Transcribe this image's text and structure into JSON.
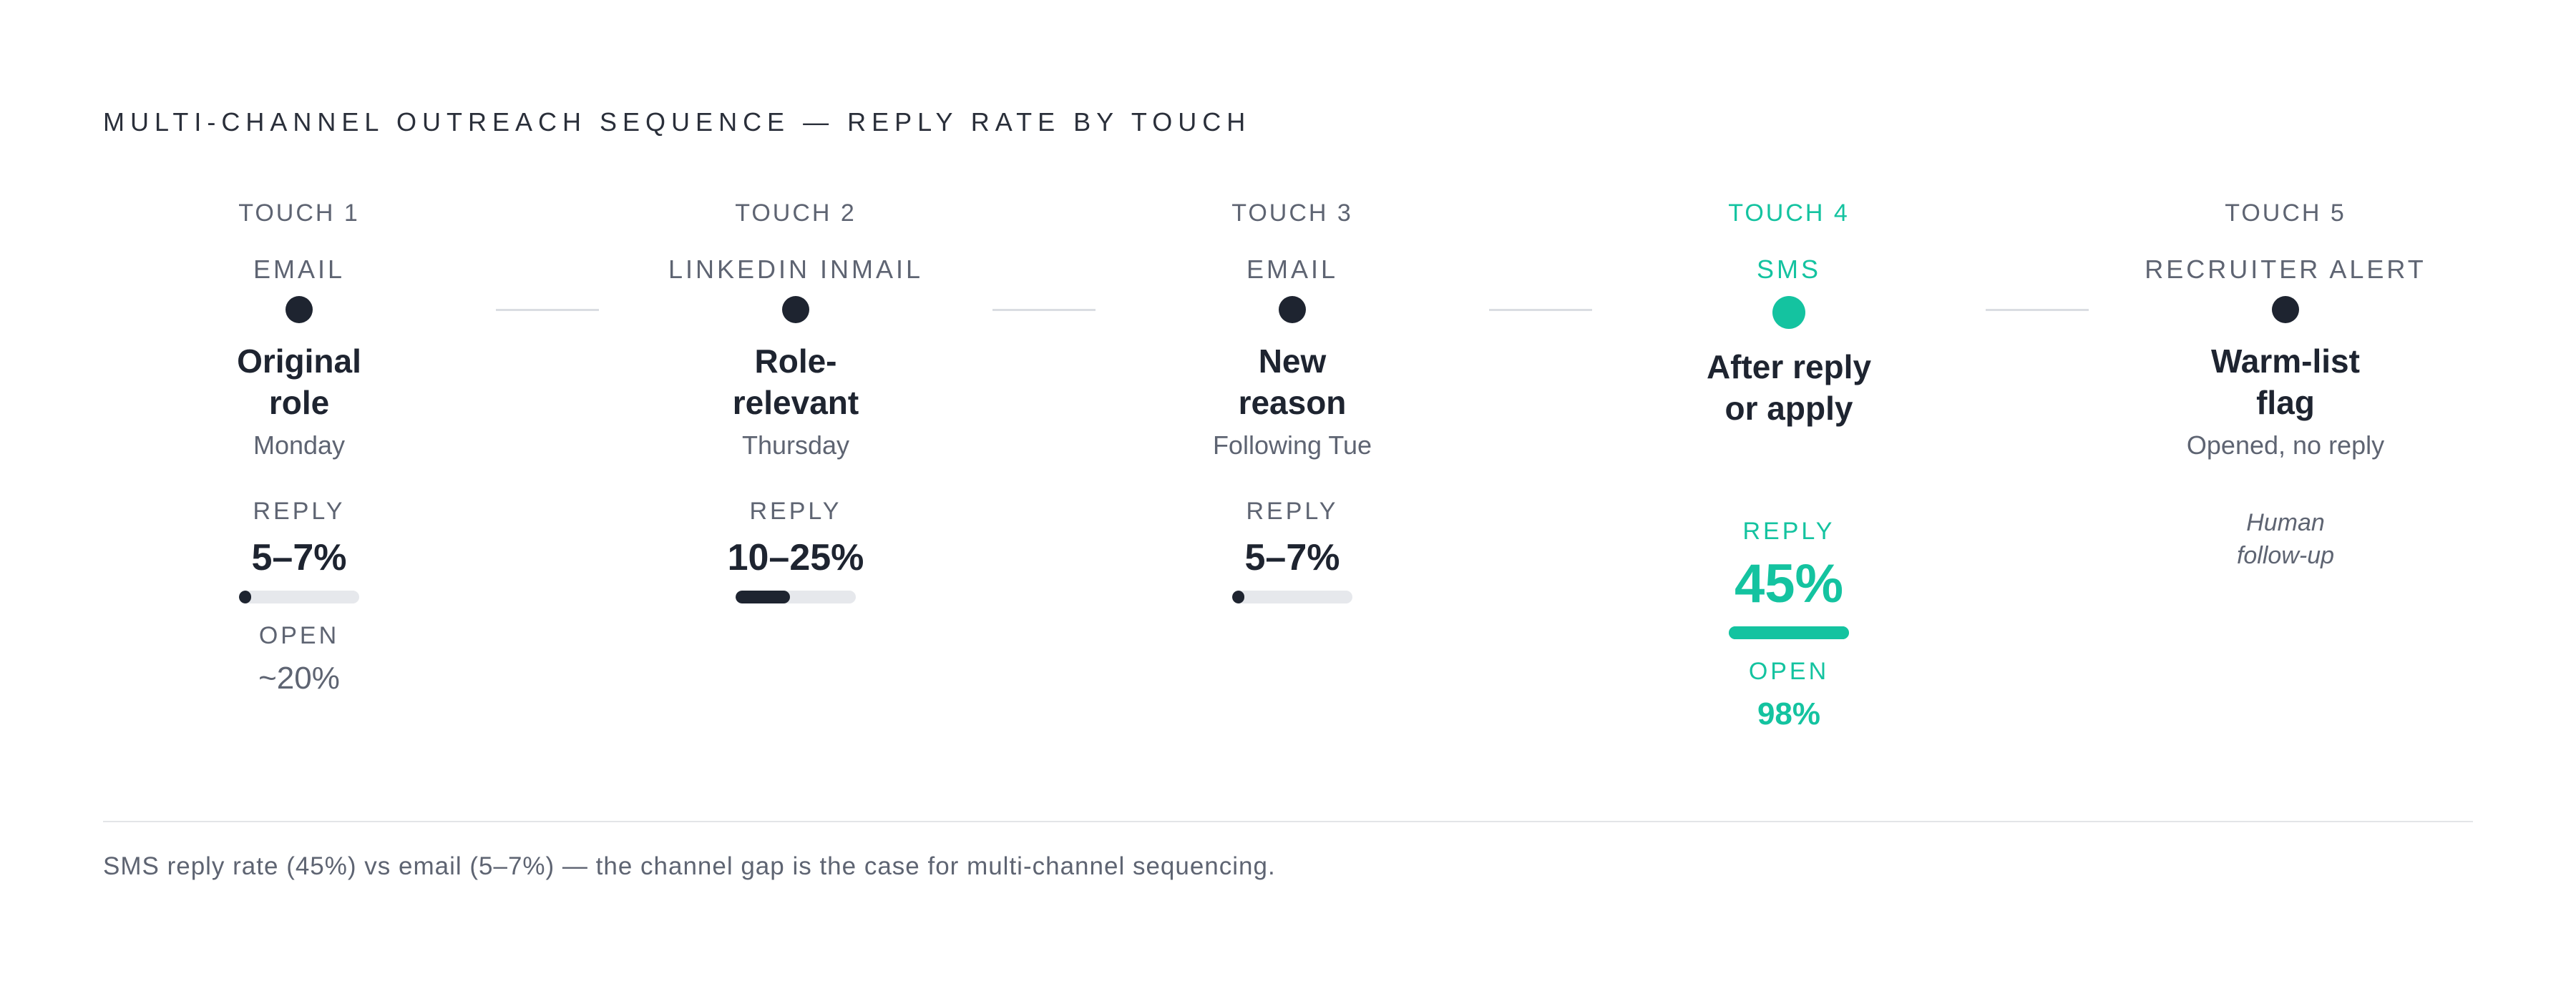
{
  "title": "MULTI-CHANNEL OUTREACH SEQUENCE — REPLY RATE BY TOUCH",
  "colors": {
    "accent": "#14c3a0",
    "ink": "#1e2430",
    "muted": "#5e6472",
    "track": "#e6e8ec",
    "rule": "#e3e5e8"
  },
  "touches": [
    {
      "label": "TOUCH 1",
      "channel": "EMAIL",
      "heading": "Original\nrole",
      "timing": "Monday",
      "reply_label": "REPLY",
      "reply_value": "5–7%",
      "reply_fraction": 0.07,
      "open_label": "OPEN",
      "open_value": "~20%",
      "note": "",
      "highlight": false
    },
    {
      "label": "TOUCH 2",
      "channel": "LINKEDIN INMAIL",
      "heading": "Role-\nrelevant",
      "timing": "Thursday",
      "reply_label": "REPLY",
      "reply_value": "10–25%",
      "reply_fraction": 0.45,
      "open_label": "",
      "open_value": "",
      "note": "",
      "highlight": false
    },
    {
      "label": "TOUCH 3",
      "channel": "EMAIL",
      "heading": "New\nreason",
      "timing": "Following Tue",
      "reply_label": "REPLY",
      "reply_value": "5–7%",
      "reply_fraction": 0.07,
      "open_label": "",
      "open_value": "",
      "note": "",
      "highlight": false
    },
    {
      "label": "TOUCH 4",
      "channel": "SMS",
      "heading": "After reply\nor apply",
      "timing": "",
      "reply_label": "REPLY",
      "reply_value": "45%",
      "reply_fraction": 1.0,
      "open_label": "OPEN",
      "open_value": "98%",
      "note": "",
      "highlight": true
    },
    {
      "label": "TOUCH 5",
      "channel": "RECRUITER ALERT",
      "heading": "Warm-list\nflag",
      "timing": "Opened, no reply",
      "reply_label": "",
      "reply_value": "",
      "reply_fraction": null,
      "open_label": "",
      "open_value": "",
      "note": "Human\nfollow-up",
      "highlight": false
    }
  ],
  "footnote": "SMS reply rate (45%) vs email (5–7%) — the channel gap is the case for multi-channel sequencing."
}
